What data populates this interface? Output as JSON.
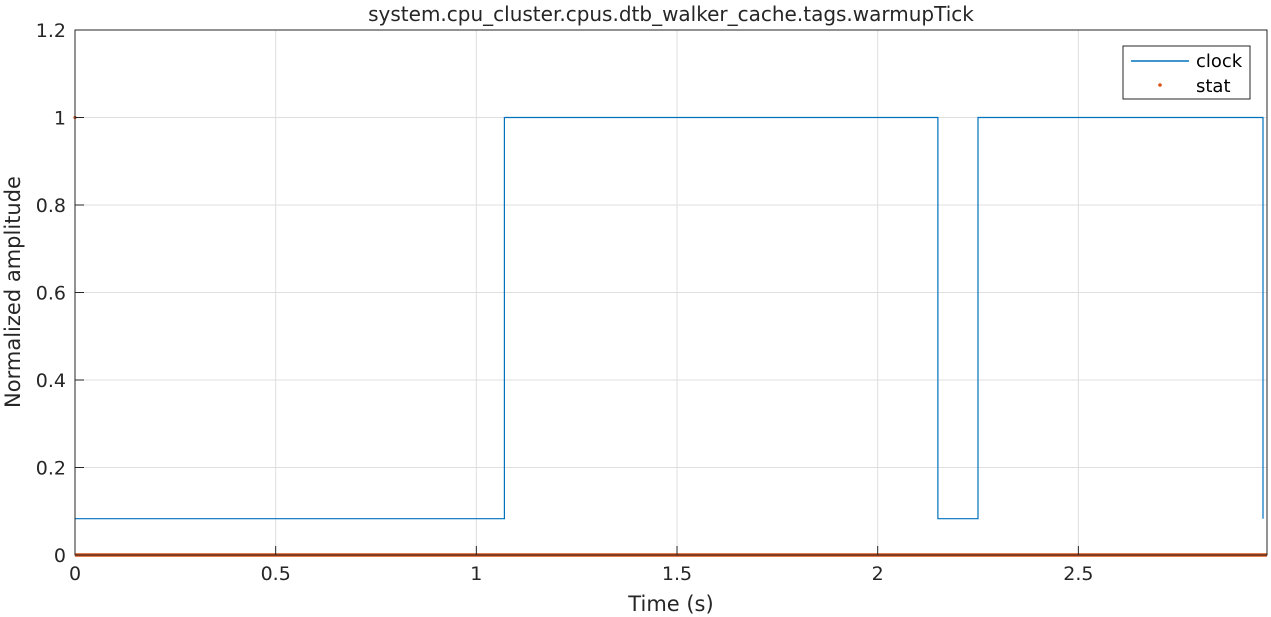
{
  "chart_data": {
    "type": "line",
    "title": "system.cpu_cluster.cpus.dtb_walker_cache.tags.warmupTick",
    "xlabel": "Time (s)",
    "ylabel": "Normalized amplitude",
    "xlim": [
      0,
      2.97
    ],
    "ylim": [
      0,
      1.2
    ],
    "xticks": [
      0,
      0.5,
      1,
      1.5,
      2,
      2.5
    ],
    "xtick_labels": [
      "0",
      "0.5",
      "1",
      "1.5",
      "2",
      "2.5"
    ],
    "yticks": [
      0,
      0.2,
      0.4,
      0.6,
      0.8,
      1,
      1.2
    ],
    "ytick_labels": [
      "0",
      "0.2",
      "0.4",
      "0.6",
      "0.8",
      "1",
      "1.2"
    ],
    "grid": true,
    "legend_position": "top-right",
    "series": [
      {
        "name": "clock",
        "style": "line",
        "color": "#0072BD",
        "x": [
          0,
          1.07,
          1.07,
          2.15,
          2.15,
          2.25,
          2.25,
          2.96,
          2.96
        ],
        "y": [
          0.083,
          0.083,
          1,
          1,
          0.083,
          0.083,
          1,
          1,
          0.083
        ]
      },
      {
        "name": "stat",
        "style": "markers",
        "color": "#D95319",
        "x": [
          0,
          2.97
        ],
        "y": [
          0,
          0
        ]
      }
    ]
  }
}
